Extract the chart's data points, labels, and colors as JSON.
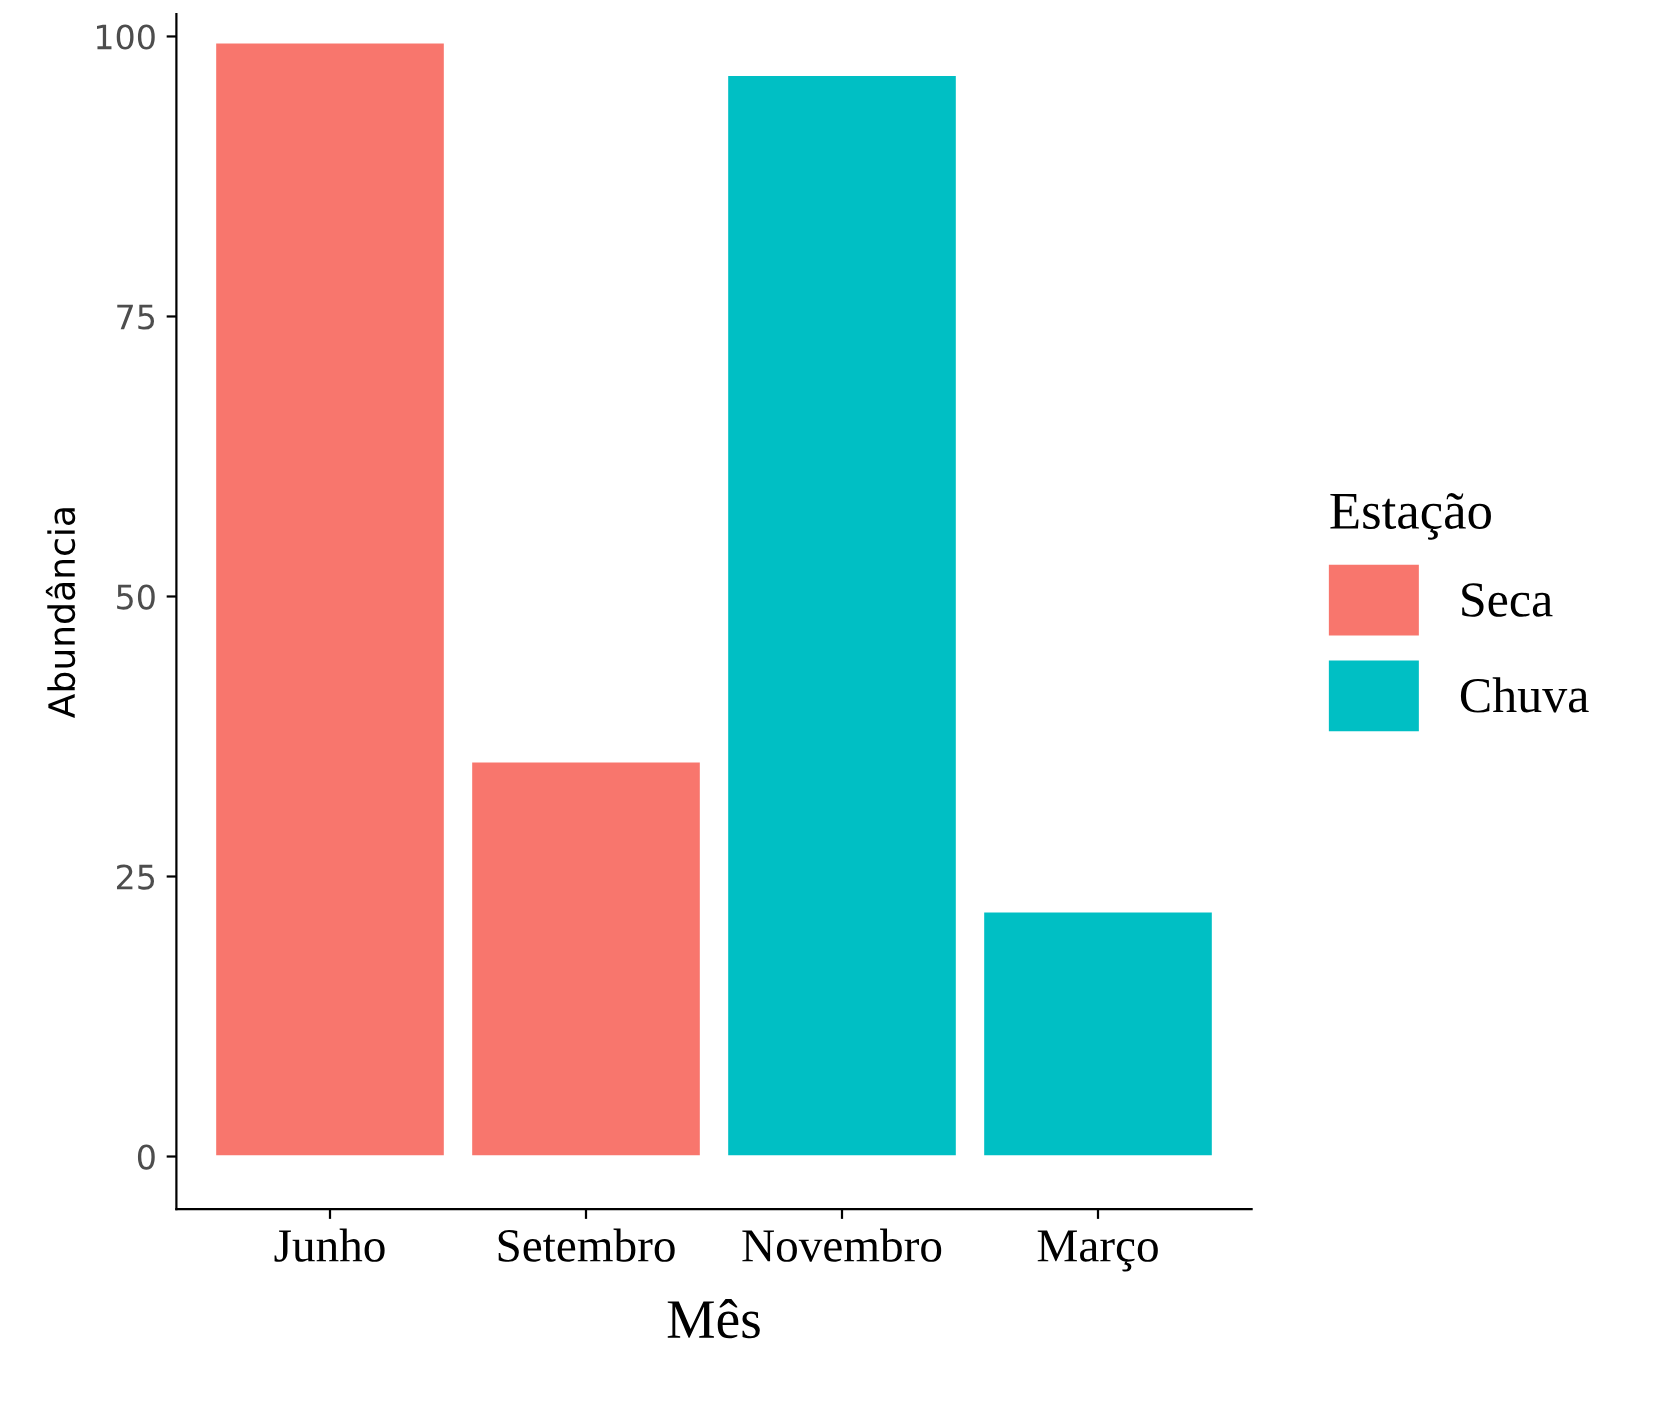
{
  "chart_data": {
    "type": "bar",
    "xlabel": "Mês",
    "ylabel": "Abundância",
    "legend_title": "Estação",
    "categories": [
      "Junho",
      "Setembro",
      "Novembro",
      "Março"
    ],
    "series": [
      {
        "name": "Seca",
        "color": "#f8766d",
        "values": [
          99.5,
          35.3,
          null,
          null
        ]
      },
      {
        "name": "Chuva",
        "color": "#00bfc4",
        "values": [
          null,
          null,
          96.6,
          21.9
        ]
      }
    ],
    "ylim": [
      -4.7,
      102
    ],
    "yticks": [
      0,
      25,
      50,
      75,
      100
    ],
    "grid": false,
    "legend": "right"
  }
}
